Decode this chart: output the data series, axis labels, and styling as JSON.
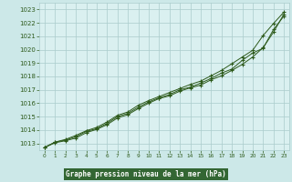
{
  "x": [
    0,
    1,
    2,
    3,
    4,
    5,
    6,
    7,
    8,
    9,
    10,
    11,
    12,
    13,
    14,
    15,
    16,
    17,
    18,
    19,
    20,
    21,
    22,
    23
  ],
  "line1": [
    1012.7,
    1013.1,
    1013.25,
    1013.5,
    1013.9,
    1014.1,
    1014.5,
    1015.0,
    1015.25,
    1015.7,
    1016.1,
    1016.4,
    1016.65,
    1017.0,
    1017.2,
    1017.5,
    1017.85,
    1018.25,
    1018.55,
    1019.2,
    1019.75,
    1020.1,
    1021.5,
    1022.5
  ],
  "line2": [
    1012.7,
    1013.1,
    1013.3,
    1013.6,
    1013.95,
    1014.2,
    1014.6,
    1015.1,
    1015.35,
    1015.85,
    1016.2,
    1016.5,
    1016.8,
    1017.1,
    1017.4,
    1017.65,
    1018.05,
    1018.45,
    1018.95,
    1019.45,
    1019.95,
    1021.05,
    1021.95,
    1022.8
  ],
  "line3": [
    1012.7,
    1013.05,
    1013.2,
    1013.4,
    1013.8,
    1014.05,
    1014.4,
    1014.9,
    1015.15,
    1015.6,
    1016.0,
    1016.35,
    1016.55,
    1016.9,
    1017.15,
    1017.35,
    1017.75,
    1018.05,
    1018.45,
    1018.9,
    1019.45,
    1020.15,
    1021.3,
    1022.65
  ],
  "line_color": "#2d5a1b",
  "bg_color": "#cce8e8",
  "grid_color": "#aacccc",
  "plot_area_color": "#daf0f0",
  "title": "Graphe pression niveau de la mer (hPa)",
  "title_color": "#ffffff",
  "title_bg": "#336633",
  "ylim": [
    1012.5,
    1023.5
  ],
  "xlim": [
    -0.5,
    23.5
  ],
  "yticks": [
    1013,
    1014,
    1015,
    1016,
    1017,
    1018,
    1019,
    1020,
    1021,
    1022,
    1023
  ],
  "xticks": [
    0,
    1,
    2,
    3,
    4,
    5,
    6,
    7,
    8,
    9,
    10,
    11,
    12,
    13,
    14,
    15,
    16,
    17,
    18,
    19,
    20,
    21,
    22,
    23
  ]
}
